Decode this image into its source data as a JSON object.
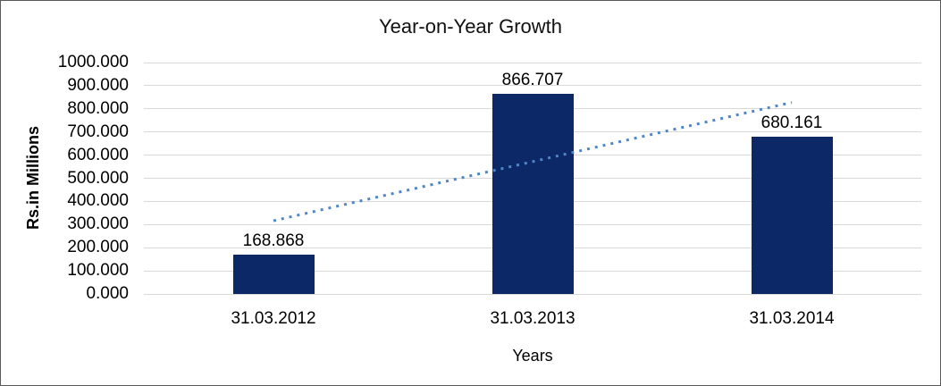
{
  "chart_data": {
    "type": "bar",
    "title": "Year-on-Year Growth",
    "xlabel": "Years",
    "ylabel": "Rs.in Millions",
    "categories": [
      "31.03.2012",
      "31.03.2013",
      "31.03.2014"
    ],
    "values": [
      168.868,
      866.707,
      680.161
    ],
    "data_labels": [
      "168.868",
      "866.707",
      "680.161"
    ],
    "ylim": [
      0,
      1000
    ],
    "ytick_labels": [
      "0.000",
      "100.000",
      "200.000",
      "300.000",
      "400.000",
      "500.000",
      "600.000",
      "700.000",
      "800.000",
      "900.000",
      "1000.000"
    ],
    "grid": true,
    "legend": "none",
    "trendline": {
      "type": "linear",
      "style": "dotted"
    }
  },
  "colors": {
    "bar": "#0d2866",
    "trendline": "#4e86c8",
    "gridline": "#d9d9d9",
    "text": "#000000",
    "border": "#595959"
  }
}
